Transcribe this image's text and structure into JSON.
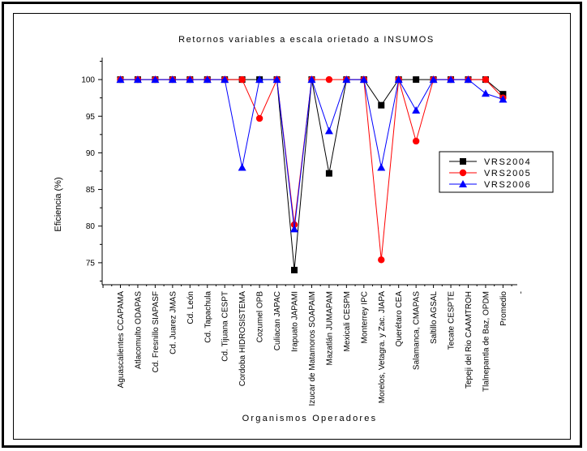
{
  "chart_data": {
    "type": "line",
    "title": "Retornos variables a escala orietado a INSUMOS",
    "xlabel": "Organismos Operadores",
    "ylabel": "Eficiencia (%)",
    "ylim": [
      72,
      103
    ],
    "yticks": [
      75,
      80,
      85,
      90,
      95,
      100
    ],
    "categories": [
      "Aguascalientes CCAPAMA",
      "Atlacomulto ODAPAS",
      "Cd. Fresnillo SIAPASF",
      "Cd. Juarez JMAS",
      "Cd. León",
      "Cd. Tapachula",
      "Cd. Tijuana CESPT",
      "Cordoba HIDROSISTEMA",
      "Cozumel OPB",
      "Culiacan JAPAC",
      "Irapuato JAPAMI",
      "Izucar de Matamoros SOAPAIM",
      "Mazatlán JUMAPAM",
      "Mexicali CESPM",
      "Monterrey IPC",
      "Morelos, Vetagra. y Zac. JIAPA",
      "Querétaro CEA",
      "Salamanca, CMAPAS",
      "Saltillo AGSAL",
      "Tecate CESPTE",
      "Tepeji del Rio CAAMTROH",
      "Tlalnepantla de Baz, OPDM",
      "Promedio"
    ],
    "series": [
      {
        "name": "VRS2004",
        "color": "#000000",
        "marker": "square",
        "values": [
          100,
          100,
          100,
          100,
          100,
          100,
          100,
          100,
          100,
          100,
          74,
          100,
          87.2,
          100,
          100,
          96.5,
          100,
          100,
          100,
          100,
          100,
          100,
          98
        ]
      },
      {
        "name": "VRS2005",
        "color": "#ff0000",
        "marker": "circle",
        "values": [
          100,
          100,
          100,
          100,
          100,
          100,
          100,
          100,
          94.7,
          100,
          80.2,
          100,
          100,
          100,
          100,
          75.4,
          100,
          91.6,
          100,
          100,
          100,
          100,
          97.5
        ]
      },
      {
        "name": "VRS2006",
        "color": "#0000ff",
        "marker": "triangle",
        "values": [
          100,
          100,
          100,
          100,
          100,
          100,
          100,
          88,
          100,
          100,
          79.6,
          100,
          93,
          100,
          100,
          88,
          100,
          95.8,
          100,
          100,
          100,
          98.1,
          97.3
        ]
      }
    ],
    "legend_position": "right",
    "grid": false
  }
}
